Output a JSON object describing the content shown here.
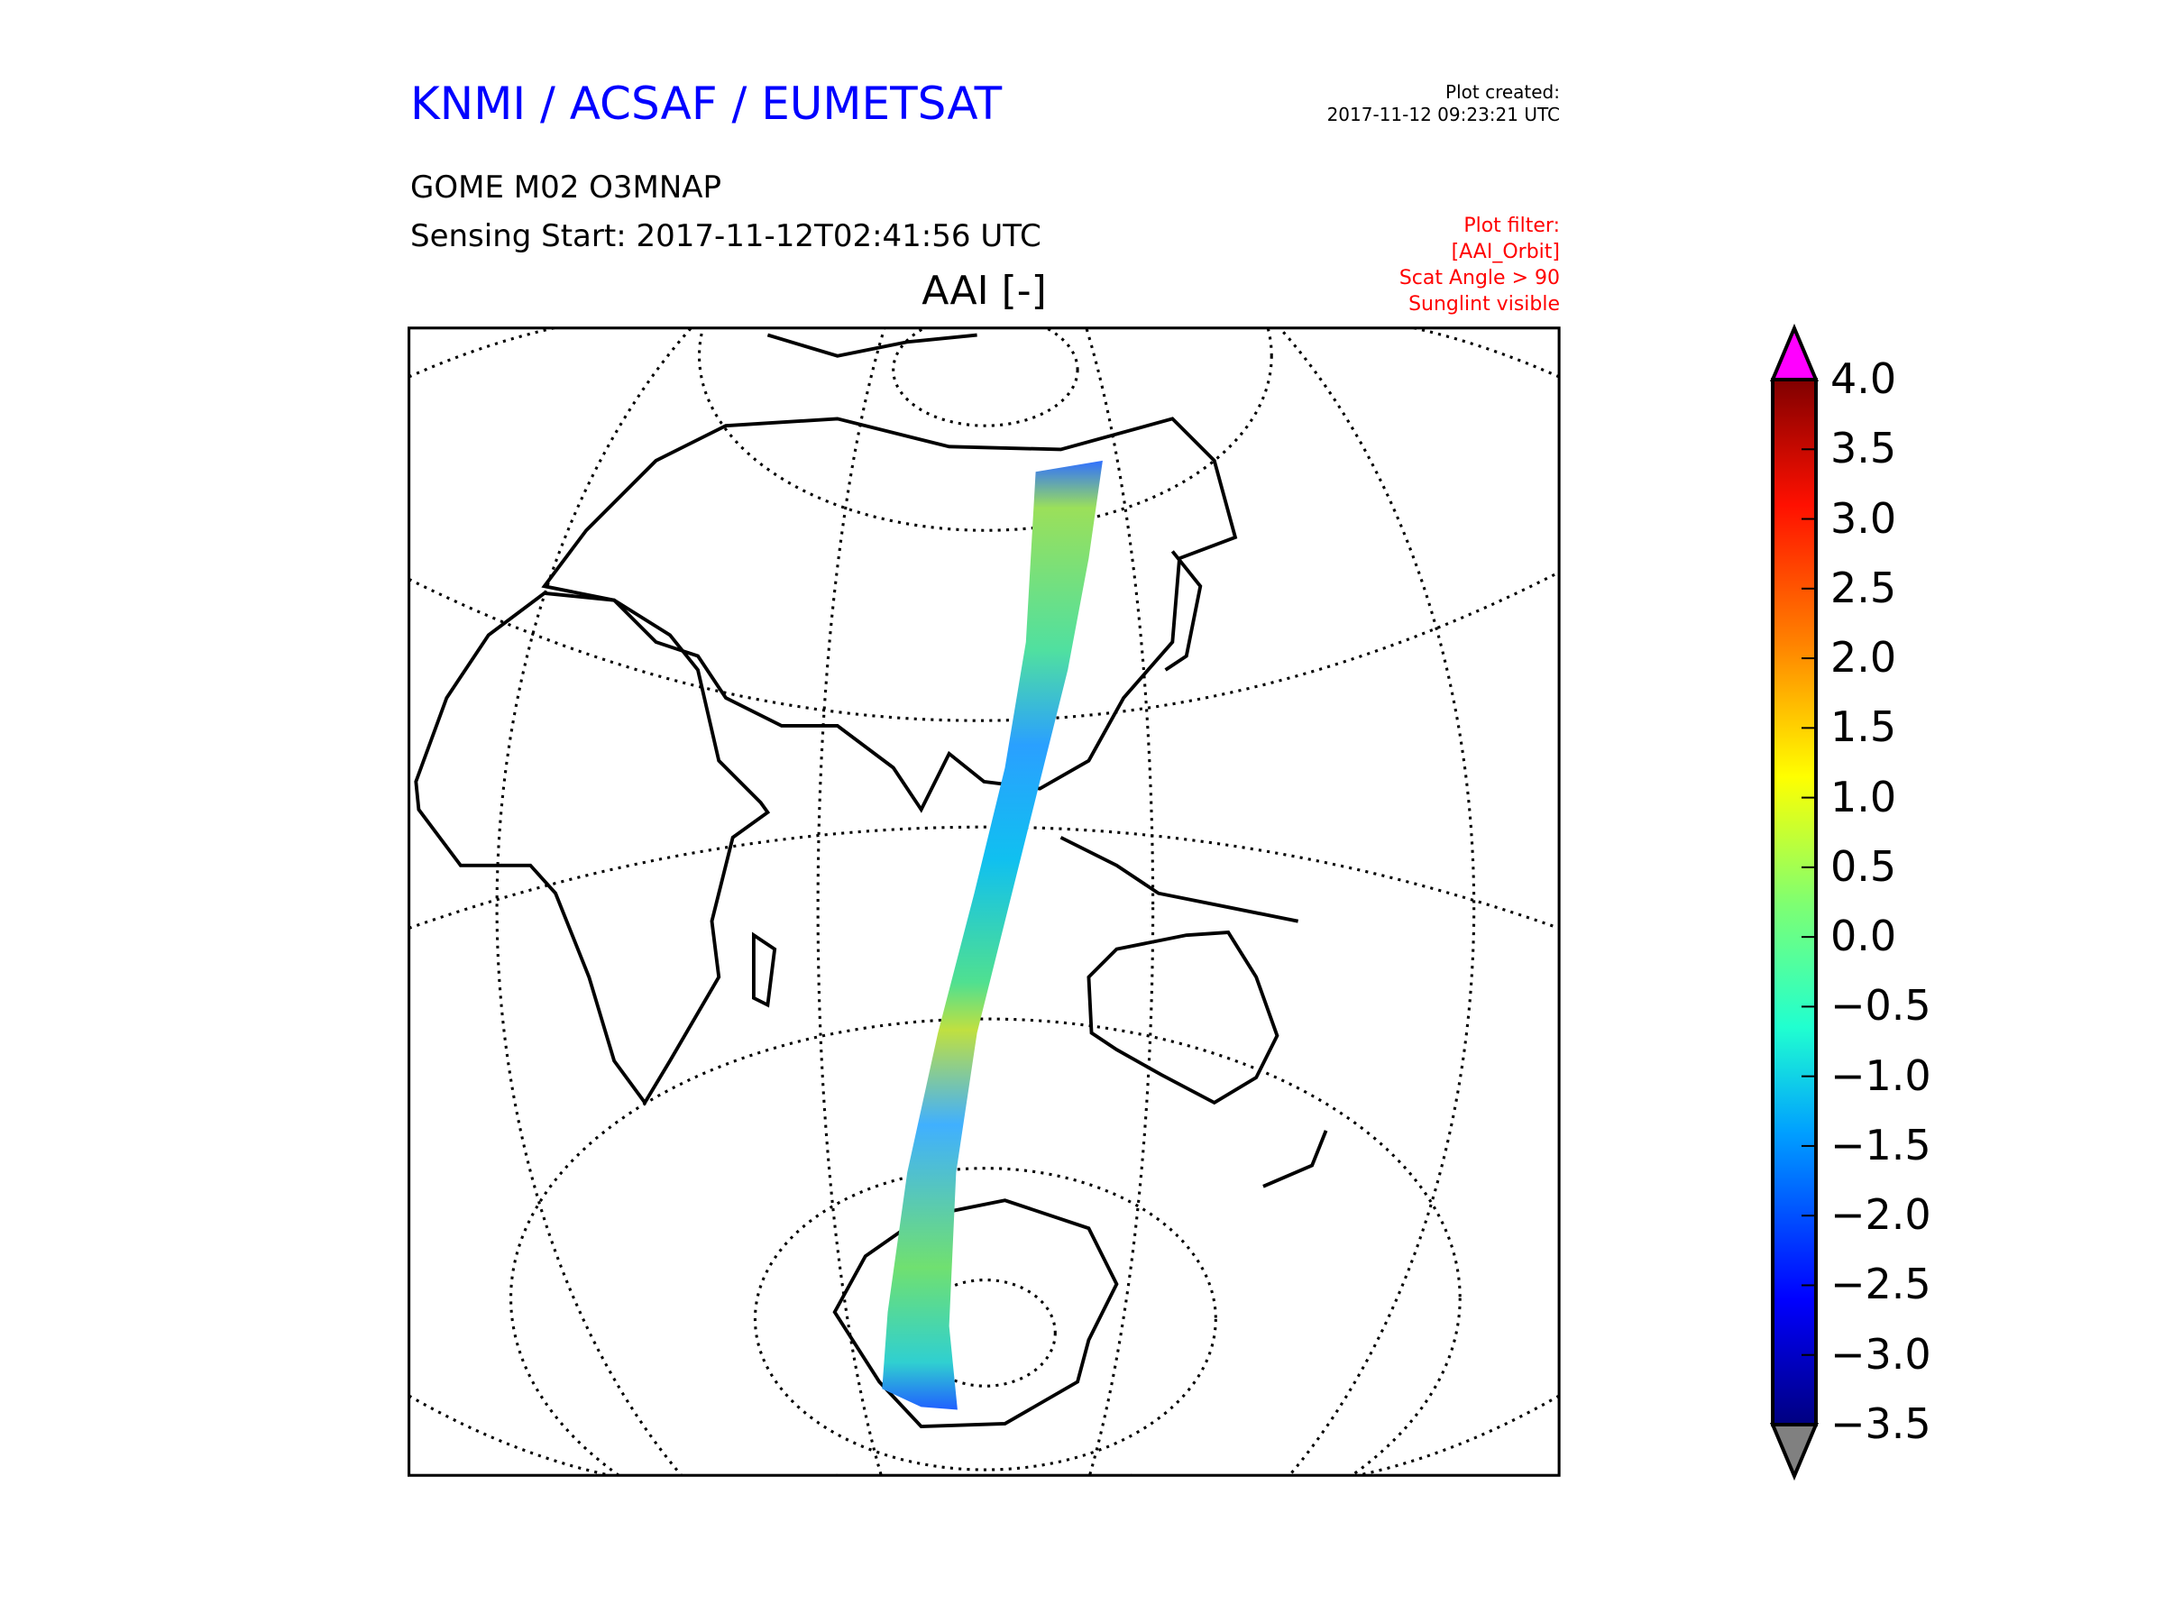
{
  "header": {
    "title": "KNMI / ACSAF / EUMETSAT",
    "product": "GOME M02 O3MNAP",
    "sensing_start": "Sensing Start: 2017-11-12T02:41:56 UTC",
    "plot_created_label": "Plot created:",
    "plot_created_value": "2017-11-12 09:23:21 UTC",
    "filter_lines": [
      "Plot filter:",
      "[AAI_Orbit]",
      "Scat Angle > 90",
      "Sunglint visible"
    ]
  },
  "map": {
    "title": "AAI [-]",
    "projection": "orthographic",
    "variable": "AAI"
  },
  "colorbar": {
    "range": [
      -3.5,
      4.0
    ],
    "ticks": [
      "4.0",
      "3.5",
      "3.0",
      "2.5",
      "2.0",
      "1.5",
      "1.0",
      "0.5",
      "0.0",
      "−0.5",
      "−1.0",
      "−1.5",
      "−2.0",
      "−2.5",
      "−3.0",
      "−3.5"
    ],
    "over_color": "#ff00ff",
    "under_color": "#808080",
    "colormap": "jet"
  }
}
